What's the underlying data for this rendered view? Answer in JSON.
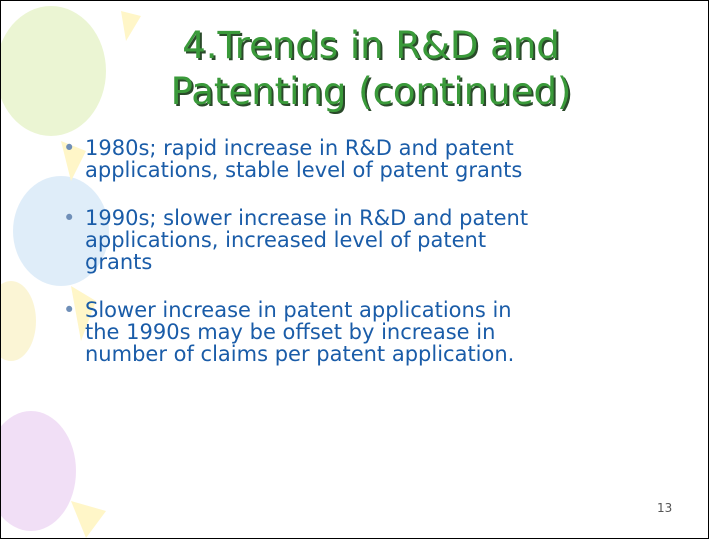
{
  "slide": {
    "title_lines": [
      "4.Trends in R&D and",
      "Patenting (continued)"
    ],
    "bullets": [
      [
        "1980s; rapid increase in R&D and patent",
        "applications, stable level of patent grants"
      ],
      [
        "1990s; slower increase in R&D and patent",
        "applications, increased level of patent",
        "grants"
      ],
      [
        "Slower increase in patent applications in",
        "the 1990s may be offset by increase in",
        "number of claims per patent application."
      ]
    ],
    "page_number": "13"
  }
}
